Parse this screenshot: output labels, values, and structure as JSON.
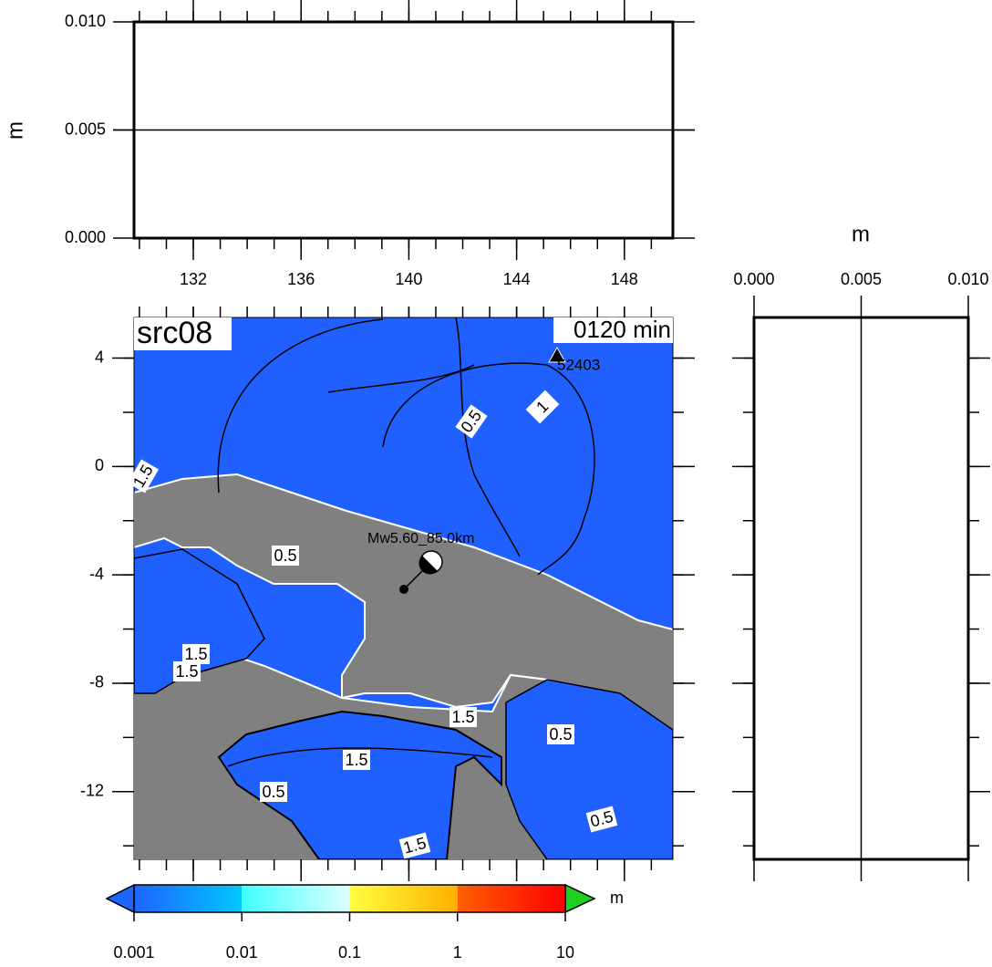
{
  "profile_top": {
    "ylabel": "m",
    "ylim": [
      0,
      0.01
    ],
    "yticks": [
      {
        "value": 0,
        "label": "0.000"
      },
      {
        "value": 0.005,
        "label": "0.005"
      },
      {
        "value": 0.01,
        "label": "0.010"
      }
    ],
    "xlim": [
      129.8,
      149.8
    ],
    "xticks": [
      132,
      136,
      140,
      144,
      148
    ]
  },
  "map": {
    "title": "src08",
    "time": "0120 min",
    "station": "52403",
    "source": "Mw5.60_85.0km",
    "ylim": [
      -14.5,
      5.5
    ],
    "yticks": [
      4,
      0,
      -4,
      -8,
      -12
    ],
    "contour_labels": [
      "0.5",
      "1",
      "1.5",
      "0.5",
      "1.5",
      "1.5",
      "0.5",
      "1.5",
      "0.5",
      "1.5",
      "0.5",
      "1.5"
    ]
  },
  "profile_right": {
    "xlabel": "m",
    "xlim": [
      0,
      0.01
    ],
    "xticks": [
      {
        "value": 0,
        "label": "0.000"
      },
      {
        "value": 0.005,
        "label": "0.005"
      },
      {
        "value": 0.01,
        "label": "0.010"
      }
    ]
  },
  "colorbar": {
    "log": true,
    "clim": [
      0.001,
      10
    ],
    "ticks": [
      0.001,
      0.01,
      0.1,
      1,
      10
    ],
    "unit": "m",
    "colors": [
      "#1e64ff",
      "#00c8ff",
      "#40ffff",
      "#e0ffff",
      "#ffff40",
      "#ffb000",
      "#ff6000",
      "#ff0000"
    ],
    "over": "#20d020"
  }
}
